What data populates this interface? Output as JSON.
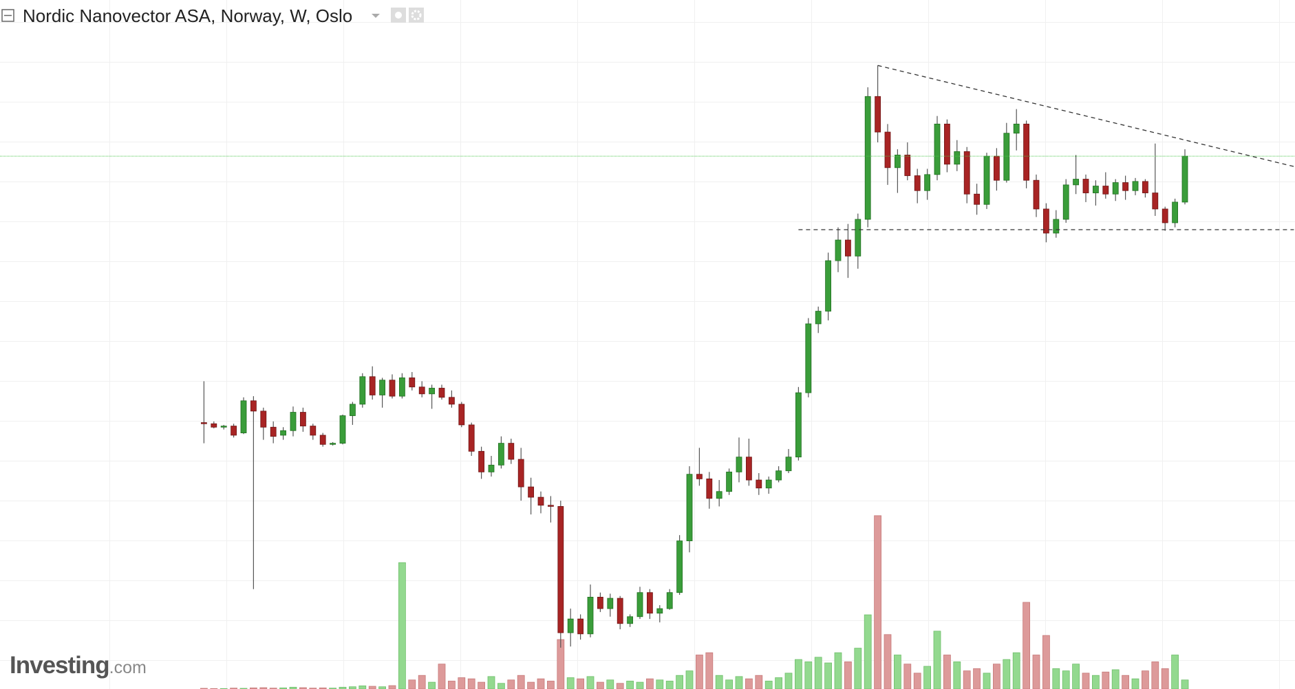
{
  "header": {
    "title": "Nordic Nanovector ASA, Norway, W, Oslo"
  },
  "logo": {
    "name": "Investing",
    "suffix": ".com"
  },
  "chart_data": {
    "type": "candlestick",
    "ylim": [
      20,
      140
    ],
    "vlim": [
      0,
      1000
    ],
    "grid": true,
    "colors": {
      "up": "#3a9d3a",
      "down": "#a82424",
      "wick": "#555555",
      "volume_up": "#93d98f",
      "volume_down": "#dd9a9a",
      "last_price": "#4cc84c",
      "trendline": "#333333"
    },
    "ohlc": [
      [
        66.4,
        73.6,
        62.8,
        66.2
      ],
      [
        66.2,
        66.6,
        65.4,
        65.6
      ],
      [
        65.6,
        66.0,
        65.2,
        65.8
      ],
      [
        65.8,
        66.2,
        63.8,
        64.2
      ],
      [
        64.6,
        70.8,
        64.4,
        70.2
      ],
      [
        70.2,
        71.0,
        37.4,
        68.4
      ],
      [
        68.4,
        69.0,
        63.4,
        65.6
      ],
      [
        65.6,
        66.6,
        62.8,
        64.0
      ],
      [
        64.2,
        65.6,
        63.4,
        65.0
      ],
      [
        65.0,
        69.2,
        64.0,
        68.2
      ],
      [
        68.2,
        69.0,
        64.8,
        65.8
      ],
      [
        65.8,
        66.2,
        63.4,
        64.2
      ],
      [
        64.2,
        64.6,
        62.2,
        62.6
      ],
      [
        62.6,
        63.0,
        62.4,
        62.8
      ],
      [
        62.8,
        67.8,
        62.6,
        67.6
      ],
      [
        67.6,
        70.0,
        66.0,
        69.6
      ],
      [
        69.6,
        75.0,
        69.0,
        74.4
      ],
      [
        74.4,
        76.2,
        70.4,
        71.2
      ],
      [
        71.2,
        74.2,
        69.0,
        73.8
      ],
      [
        73.8,
        74.8,
        70.6,
        71.0
      ],
      [
        71.0,
        75.0,
        70.6,
        74.2
      ],
      [
        74.2,
        75.2,
        72.0,
        72.6
      ],
      [
        72.6,
        73.6,
        70.8,
        71.4
      ],
      [
        71.4,
        73.0,
        68.8,
        72.4
      ],
      [
        72.4,
        73.0,
        70.4,
        70.8
      ],
      [
        70.8,
        72.0,
        69.0,
        69.6
      ],
      [
        69.6,
        70.0,
        65.6,
        66.0
      ],
      [
        66.0,
        66.4,
        60.6,
        61.4
      ],
      [
        61.4,
        62.2,
        56.6,
        57.8
      ],
      [
        57.8,
        60.6,
        57.0,
        59.0
      ],
      [
        59.0,
        64.0,
        58.4,
        62.8
      ],
      [
        62.8,
        63.6,
        59.2,
        60.0
      ],
      [
        60.0,
        62.0,
        52.8,
        55.2
      ],
      [
        55.2,
        56.8,
        50.4,
        53.4
      ],
      [
        53.4,
        54.4,
        50.6,
        52.0
      ],
      [
        52.0,
        53.6,
        49.0,
        51.8
      ],
      [
        51.8,
        52.8,
        27.2,
        29.8
      ],
      [
        29.8,
        34.0,
        27.4,
        32.2
      ],
      [
        32.2,
        33.0,
        28.6,
        29.6
      ],
      [
        29.6,
        38.2,
        29.0,
        36.0
      ],
      [
        36.0,
        36.8,
        33.4,
        34.0
      ],
      [
        34.0,
        36.6,
        32.6,
        35.8
      ],
      [
        35.8,
        36.2,
        30.4,
        31.4
      ],
      [
        31.4,
        33.0,
        30.8,
        32.6
      ],
      [
        32.6,
        37.8,
        32.2,
        36.8
      ],
      [
        36.8,
        37.4,
        32.2,
        33.2
      ],
      [
        33.2,
        34.6,
        31.6,
        34.0
      ],
      [
        34.0,
        37.4,
        33.8,
        36.8
      ],
      [
        36.8,
        46.8,
        36.4,
        45.8
      ],
      [
        45.8,
        58.8,
        43.8,
        57.4
      ],
      [
        57.4,
        62.0,
        55.4,
        56.6
      ],
      [
        56.6,
        57.8,
        51.4,
        53.2
      ],
      [
        53.2,
        56.4,
        51.8,
        54.4
      ],
      [
        54.4,
        58.4,
        53.8,
        57.8
      ],
      [
        57.8,
        63.8,
        56.0,
        60.4
      ],
      [
        60.4,
        63.6,
        55.4,
        56.4
      ],
      [
        56.4,
        57.6,
        53.8,
        55.0
      ],
      [
        55.0,
        57.0,
        54.0,
        56.4
      ],
      [
        56.4,
        58.8,
        56.0,
        58.0
      ],
      [
        58.0,
        61.8,
        57.6,
        60.4
      ],
      [
        60.4,
        72.6,
        59.8,
        71.6
      ],
      [
        71.6,
        84.6,
        70.8,
        83.6
      ],
      [
        83.6,
        86.6,
        82.0,
        85.8
      ],
      [
        85.8,
        96.0,
        84.2,
        94.6
      ],
      [
        94.6,
        100.4,
        92.6,
        98.2
      ],
      [
        98.2,
        101.0,
        91.6,
        95.4
      ],
      [
        95.4,
        102.8,
        93.2,
        101.8
      ],
      [
        101.8,
        124.8,
        100.4,
        123.2
      ],
      [
        123.2,
        128.6,
        115.2,
        117.0
      ],
      [
        117.0,
        118.4,
        107.8,
        110.8
      ],
      [
        110.8,
        114.0,
        106.4,
        113.0
      ],
      [
        113.0,
        115.2,
        108.6,
        109.4
      ],
      [
        109.4,
        110.6,
        104.6,
        106.8
      ],
      [
        106.8,
        110.6,
        105.2,
        109.6
      ],
      [
        109.6,
        119.8,
        108.6,
        118.4
      ],
      [
        118.4,
        119.2,
        110.0,
        111.4
      ],
      [
        111.4,
        115.6,
        110.2,
        113.6
      ],
      [
        113.6,
        114.4,
        104.6,
        106.2
      ],
      [
        106.2,
        108.0,
        102.6,
        104.4
      ],
      [
        104.4,
        113.4,
        103.6,
        112.8
      ],
      [
        112.8,
        114.2,
        106.8,
        108.6
      ],
      [
        108.6,
        118.6,
        108.2,
        116.8
      ],
      [
        116.8,
        121.0,
        113.8,
        118.4
      ],
      [
        118.4,
        119.0,
        107.2,
        108.6
      ],
      [
        108.6,
        109.6,
        102.2,
        103.6
      ],
      [
        103.6,
        104.6,
        97.8,
        99.4
      ],
      [
        99.4,
        103.4,
        98.6,
        101.8
      ],
      [
        101.8,
        108.8,
        101.2,
        107.8
      ],
      [
        107.8,
        113.0,
        106.2,
        108.8
      ],
      [
        108.8,
        109.6,
        104.8,
        106.4
      ],
      [
        106.4,
        108.6,
        104.2,
        107.6
      ],
      [
        107.6,
        110.0,
        105.4,
        106.2
      ],
      [
        106.2,
        108.8,
        105.0,
        108.2
      ],
      [
        108.2,
        109.4,
        105.2,
        106.8
      ],
      [
        106.8,
        109.0,
        106.0,
        108.4
      ],
      [
        108.4,
        108.8,
        105.6,
        106.4
      ],
      [
        106.4,
        115.0,
        102.4,
        103.6
      ],
      [
        103.6,
        104.0,
        99.8,
        101.2
      ],
      [
        101.2,
        105.4,
        100.4,
        104.8
      ],
      [
        104.8,
        114.0,
        104.4,
        112.8
      ]
    ],
    "volume": [
      3,
      2,
      2,
      4,
      3,
      5,
      6,
      4,
      5,
      8,
      6,
      4,
      5,
      4,
      8,
      10,
      14,
      12,
      10,
      15,
      557,
      40,
      60,
      30,
      110,
      35,
      50,
      45,
      30,
      55,
      25,
      40,
      60,
      30,
      45,
      35,
      218,
      50,
      45,
      55,
      30,
      40,
      25,
      35,
      30,
      45,
      40,
      35,
      60,
      80,
      150,
      160,
      60,
      40,
      55,
      45,
      60,
      35,
      50,
      70,
      130,
      120,
      140,
      115,
      160,
      120,
      180,
      327,
      764,
      240,
      150,
      110,
      70,
      100,
      255,
      150,
      120,
      80,
      90,
      70,
      110,
      130,
      160,
      382,
      150,
      236,
      90,
      80,
      110,
      70,
      60,
      75,
      85,
      60,
      45,
      80,
      120,
      90,
      150,
      40
    ],
    "trendlines": [
      {
        "start_index": 60,
        "end_index": 110,
        "start": 100,
        "end": 100
      },
      {
        "start_index": 68,
        "end_index": 110,
        "start": 128.6,
        "end": 111.0
      }
    ]
  }
}
